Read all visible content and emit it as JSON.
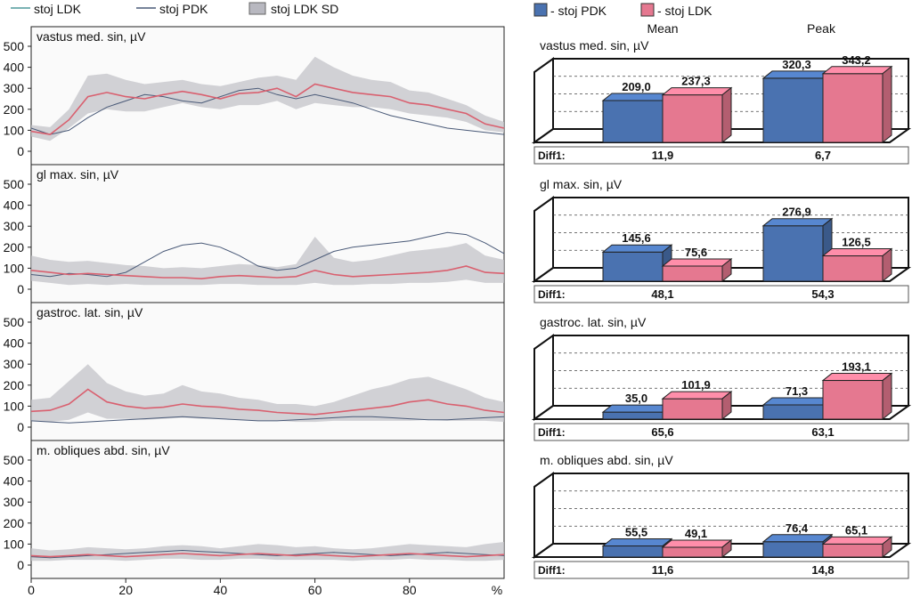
{
  "legend_left": [
    {
      "label": "stoj LDK",
      "color": "#4f9a9c",
      "kind": "line"
    },
    {
      "label": "stoj PDK",
      "color": "#4a5a78",
      "kind": "line"
    },
    {
      "label": "stoj LDK SD",
      "color": "#b8b8c0",
      "kind": "box"
    }
  ],
  "legend_right": [
    {
      "label": "stoj PDK",
      "color": "#4a72b0"
    },
    {
      "label": "stoj LDK",
      "color": "#e57890"
    }
  ],
  "colors": {
    "ldk_line": "#d9606f",
    "pdk_line": "#4a5a78",
    "sd_band": "#c3c3c8",
    "bar_pdk": "#4a72b0",
    "bar_ldk": "#e57890"
  },
  "x_axis": {
    "ticks": [
      0,
      20,
      40,
      60,
      80
    ],
    "unit_label": "%",
    "range": [
      0,
      100
    ]
  },
  "y_ticks": [
    0,
    100,
    200,
    300,
    400,
    500
  ],
  "bar_headers": {
    "mean": "Mean",
    "peak": "Peak"
  },
  "diff_label": "Diff1:",
  "chart_data": [
    {
      "type": "line",
      "title": "vastus med. sin, µV",
      "ylim": [
        0,
        580
      ],
      "x": [
        0,
        4,
        8,
        12,
        16,
        20,
        24,
        28,
        32,
        36,
        40,
        44,
        48,
        52,
        56,
        60,
        64,
        68,
        72,
        76,
        80,
        84,
        88,
        92,
        96,
        100
      ],
      "series": [
        {
          "name": "stoj LDK",
          "values": [
            95,
            80,
            150,
            260,
            280,
            260,
            250,
            270,
            285,
            270,
            250,
            275,
            280,
            300,
            260,
            320,
            300,
            280,
            270,
            260,
            230,
            220,
            200,
            180,
            130,
            110
          ]
        },
        {
          "name": "stoj PDK",
          "values": [
            110,
            80,
            100,
            160,
            210,
            240,
            270,
            260,
            240,
            230,
            260,
            290,
            300,
            270,
            250,
            270,
            250,
            230,
            200,
            170,
            150,
            130,
            110,
            100,
            90,
            80
          ]
        },
        {
          "name": "stoj LDK SD",
          "lower": [
            70,
            50,
            110,
            180,
            200,
            190,
            190,
            210,
            230,
            210,
            200,
            220,
            220,
            240,
            200,
            230,
            220,
            210,
            210,
            200,
            180,
            170,
            160,
            140,
            100,
            90
          ],
          "upper": [
            125,
            115,
            200,
            360,
            370,
            340,
            320,
            330,
            340,
            320,
            310,
            330,
            350,
            360,
            340,
            450,
            400,
            360,
            340,
            330,
            290,
            280,
            250,
            220,
            170,
            140
          ]
        }
      ]
    },
    {
      "type": "line",
      "title": "gl max. sin, µV",
      "ylim": [
        0,
        580
      ],
      "x": [
        0,
        4,
        8,
        12,
        16,
        20,
        24,
        28,
        32,
        36,
        40,
        44,
        48,
        52,
        56,
        60,
        64,
        68,
        72,
        76,
        80,
        84,
        88,
        92,
        96,
        100
      ],
      "series": [
        {
          "name": "stoj LDK",
          "values": [
            90,
            80,
            70,
            75,
            70,
            65,
            60,
            55,
            55,
            50,
            60,
            65,
            60,
            55,
            60,
            90,
            70,
            60,
            65,
            70,
            75,
            80,
            90,
            110,
            80,
            75
          ]
        },
        {
          "name": "stoj PDK",
          "values": [
            70,
            60,
            75,
            70,
            60,
            80,
            130,
            180,
            210,
            220,
            200,
            160,
            110,
            90,
            100,
            140,
            180,
            200,
            210,
            220,
            230,
            250,
            270,
            260,
            220,
            170
          ]
        },
        {
          "name": "stoj LDK SD",
          "lower": [
            40,
            30,
            20,
            25,
            20,
            25,
            20,
            20,
            20,
            20,
            25,
            25,
            20,
            20,
            20,
            30,
            20,
            20,
            25,
            25,
            30,
            30,
            35,
            45,
            30,
            30
          ],
          "upper": [
            160,
            140,
            130,
            135,
            125,
            115,
            110,
            100,
            105,
            100,
            110,
            120,
            115,
            105,
            120,
            250,
            150,
            130,
            140,
            160,
            180,
            190,
            200,
            220,
            160,
            140
          ]
        }
      ]
    },
    {
      "type": "line",
      "title": "gastroc. lat. sin, µV",
      "ylim": [
        0,
        580
      ],
      "x": [
        0,
        4,
        8,
        12,
        16,
        20,
        24,
        28,
        32,
        36,
        40,
        44,
        48,
        52,
        56,
        60,
        64,
        68,
        72,
        76,
        80,
        84,
        88,
        92,
        96,
        100
      ],
      "series": [
        {
          "name": "stoj LDK",
          "values": [
            75,
            80,
            110,
            180,
            120,
            100,
            90,
            95,
            110,
            100,
            95,
            85,
            80,
            70,
            65,
            60,
            70,
            80,
            90,
            100,
            120,
            130,
            110,
            100,
            80,
            70
          ]
        },
        {
          "name": "stoj PDK",
          "values": [
            30,
            25,
            20,
            25,
            30,
            35,
            40,
            45,
            50,
            45,
            40,
            35,
            30,
            30,
            35,
            40,
            45,
            50,
            50,
            45,
            40,
            35,
            35,
            40,
            45,
            50
          ]
        },
        {
          "name": "stoj LDK SD",
          "lower": [
            30,
            25,
            35,
            70,
            40,
            40,
            35,
            40,
            45,
            40,
            40,
            35,
            30,
            30,
            25,
            25,
            30,
            30,
            30,
            30,
            30,
            35,
            30,
            30,
            30,
            25
          ],
          "upper": [
            130,
            140,
            220,
            300,
            210,
            170,
            150,
            160,
            200,
            170,
            160,
            140,
            130,
            110,
            110,
            100,
            120,
            150,
            180,
            200,
            230,
            240,
            210,
            180,
            140,
            120
          ]
        }
      ]
    },
    {
      "type": "line",
      "title": "m. obliques abd. sin, µV",
      "ylim": [
        0,
        580
      ],
      "x": [
        0,
        4,
        8,
        12,
        16,
        20,
        24,
        28,
        32,
        36,
        40,
        44,
        48,
        52,
        56,
        60,
        64,
        68,
        72,
        76,
        80,
        84,
        88,
        92,
        96,
        100
      ],
      "series": [
        {
          "name": "stoj LDK",
          "values": [
            45,
            40,
            45,
            50,
            45,
            40,
            45,
            50,
            55,
            50,
            45,
            50,
            55,
            50,
            45,
            50,
            45,
            40,
            45,
            50,
            55,
            50,
            45,
            40,
            45,
            50
          ]
        },
        {
          "name": "stoj PDK",
          "values": [
            40,
            35,
            40,
            45,
            50,
            55,
            60,
            65,
            70,
            65,
            60,
            55,
            50,
            45,
            50,
            55,
            60,
            55,
            50,
            45,
            50,
            55,
            60,
            55,
            50,
            45
          ]
        },
        {
          "name": "stoj LDK SD",
          "lower": [
            20,
            20,
            25,
            25,
            25,
            20,
            25,
            30,
            30,
            25,
            25,
            30,
            30,
            25,
            25,
            25,
            25,
            20,
            25,
            25,
            30,
            25,
            25,
            20,
            20,
            25
          ],
          "upper": [
            80,
            70,
            75,
            85,
            80,
            75,
            80,
            90,
            95,
            90,
            80,
            90,
            100,
            95,
            85,
            90,
            80,
            75,
            80,
            90,
            100,
            95,
            90,
            85,
            100,
            110
          ]
        }
      ]
    },
    {
      "type": "bar",
      "title": "vastus med. sin, µV",
      "categories": [
        "Mean",
        "Peak"
      ],
      "ylim": [
        0,
        400
      ],
      "series": [
        {
          "name": "stoj PDK",
          "values": [
            209.0,
            320.3
          ],
          "labels": [
            "209,0",
            "320,3"
          ]
        },
        {
          "name": "stoj LDK",
          "values": [
            237.3,
            343.2
          ],
          "labels": [
            "237,3",
            "343,2"
          ]
        }
      ],
      "diff": [
        "11,9",
        "6,7"
      ]
    },
    {
      "type": "bar",
      "title": "gl max. sin, µV",
      "categories": [
        "Mean",
        "Peak"
      ],
      "ylim": [
        0,
        400
      ],
      "series": [
        {
          "name": "stoj PDK",
          "values": [
            145.6,
            276.9
          ],
          "labels": [
            "145,6",
            "276,9"
          ]
        },
        {
          "name": "stoj LDK",
          "values": [
            75.6,
            126.5
          ],
          "labels": [
            "75,6",
            "126,5"
          ]
        }
      ],
      "diff": [
        "48,1",
        "54,3"
      ]
    },
    {
      "type": "bar",
      "title": "gastroc. lat. sin, µV",
      "categories": [
        "Mean",
        "Peak"
      ],
      "ylim": [
        0,
        400
      ],
      "series": [
        {
          "name": "stoj PDK",
          "values": [
            35.0,
            71.3
          ],
          "labels": [
            "35,0",
            "71,3"
          ]
        },
        {
          "name": "stoj LDK",
          "values": [
            101.9,
            193.1
          ],
          "labels": [
            "101,9",
            "193,1"
          ]
        }
      ],
      "diff": [
        "65,6",
        "63,1"
      ]
    },
    {
      "type": "bar",
      "title": "m. obliques abd. sin, µV",
      "categories": [
        "Mean",
        "Peak"
      ],
      "ylim": [
        0,
        400
      ],
      "series": [
        {
          "name": "stoj PDK",
          "values": [
            55.5,
            76.4
          ],
          "labels": [
            "55,5",
            "76,4"
          ]
        },
        {
          "name": "stoj LDK",
          "values": [
            49.1,
            65.1
          ],
          "labels": [
            "49,1",
            "65,1"
          ]
        }
      ],
      "diff": [
        "11,6",
        "14,8"
      ]
    }
  ]
}
